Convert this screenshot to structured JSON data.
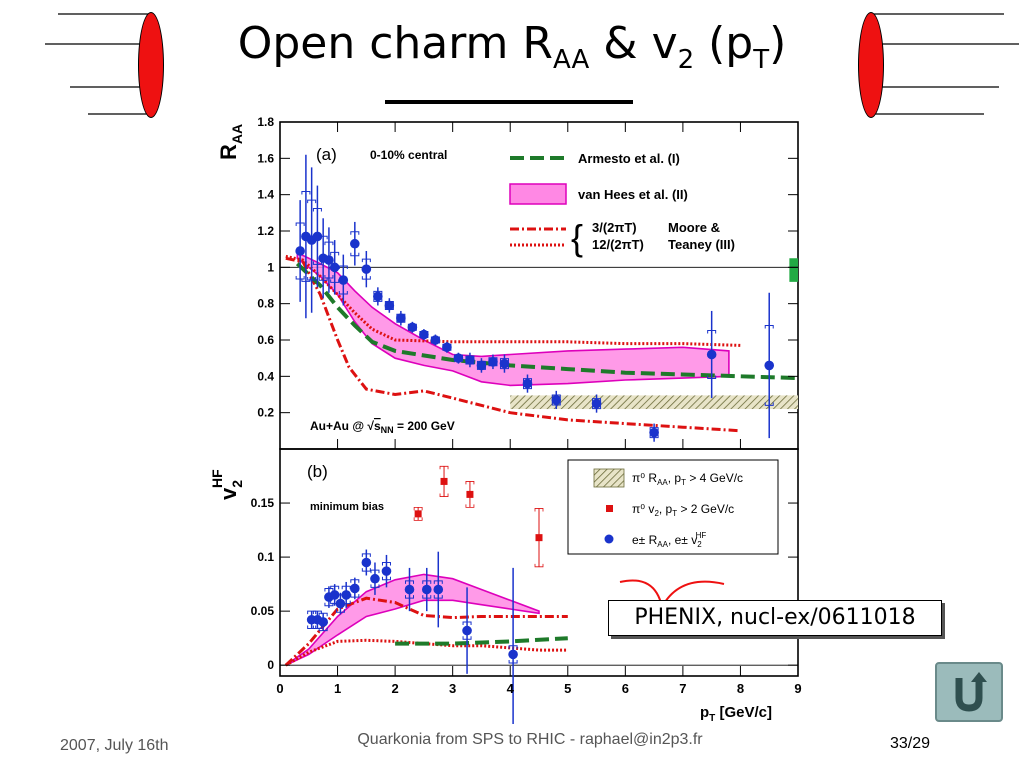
{
  "slide": {
    "title_main": "Open charm R",
    "title_sub1": "AA",
    "title_mid": " & v",
    "title_sub2": "2",
    "title_paren": " (p",
    "title_sub3": "T",
    "title_close": ")",
    "footer_date": "2007, July 16th",
    "footer_center": "Quarkonia from SPS to RHIC - raphael@in2p3.fr",
    "footer_page": "33/29",
    "citation": "PHENIX, nucl-ex/0611018",
    "return_icon": "return-arrow-icon"
  },
  "colors": {
    "blue": "#1a33cc",
    "red": "#dd1111",
    "green": "#1e7a2a",
    "magenta": "#ff66dd",
    "magenta_line": "#dd00bb",
    "deco_red": "#ee1111"
  },
  "chart_data": [
    {
      "type": "scatter",
      "panel_label": "(a)",
      "ylabel_main": "R",
      "ylabel_sub": "AA",
      "ylim": [
        0,
        1.8
      ],
      "xlim": [
        0,
        9
      ],
      "yticks": [
        "0.2",
        "0.4",
        "0.6",
        "0.8",
        "1",
        "1.2",
        "1.4",
        "1.6",
        "1.8"
      ],
      "annotation_centrality": "0-10% central",
      "annotation_system": "Au+Au @ ",
      "annotation_energy": "s",
      "annotation_energy_sub": "NN",
      "annotation_energy_tail": " = 200 GeV",
      "legend": [
        {
          "label": "Armesto et al. (I)",
          "style": "green-dashed"
        },
        {
          "label": "van Hees et al. (II)",
          "style": "magenta-band"
        },
        {
          "label": "3/(2πT)",
          "style": "red-dashdot"
        },
        {
          "label": "12/(2πT)",
          "style": "red-dotted"
        },
        {
          "label": "Moore &",
          "style": "text"
        },
        {
          "label": "Teaney (III)",
          "style": "text"
        }
      ],
      "series": [
        {
          "name": "e± RAA",
          "points": [
            [
              0.35,
              1.09
            ],
            [
              0.45,
              1.17
            ],
            [
              0.55,
              1.15
            ],
            [
              0.65,
              1.17
            ],
            [
              0.75,
              1.05
            ],
            [
              0.85,
              1.04
            ],
            [
              0.95,
              1.0
            ],
            [
              1.1,
              0.93
            ],
            [
              1.3,
              1.13
            ],
            [
              1.5,
              0.99
            ],
            [
              1.7,
              0.84
            ],
            [
              1.9,
              0.79
            ],
            [
              2.1,
              0.72
            ],
            [
              2.3,
              0.67
            ],
            [
              2.5,
              0.63
            ],
            [
              2.7,
              0.6
            ],
            [
              2.9,
              0.56
            ],
            [
              3.1,
              0.5
            ],
            [
              3.3,
              0.49
            ],
            [
              3.5,
              0.46
            ],
            [
              3.7,
              0.48
            ],
            [
              3.9,
              0.47
            ],
            [
              4.3,
              0.36
            ],
            [
              4.8,
              0.27
            ],
            [
              5.5,
              0.25
            ],
            [
              6.5,
              0.09
            ],
            [
              7.5,
              0.52
            ],
            [
              8.5,
              0.46
            ]
          ],
          "err": [
            [
              0.35,
              0.28
            ],
            [
              0.45,
              0.45
            ],
            [
              0.55,
              0.4
            ],
            [
              0.65,
              0.28
            ],
            [
              0.75,
              0.22
            ],
            [
              0.85,
              0.18
            ],
            [
              0.95,
              0.15
            ],
            [
              1.1,
              0.14
            ],
            [
              1.3,
              0.12
            ],
            [
              1.5,
              0.1
            ],
            [
              1.7,
              0.05
            ],
            [
              1.9,
              0.04
            ],
            [
              2.1,
              0.04
            ],
            [
              2.3,
              0.03
            ],
            [
              2.5,
              0.03
            ],
            [
              2.7,
              0.03
            ],
            [
              2.9,
              0.03
            ],
            [
              3.1,
              0.03
            ],
            [
              3.3,
              0.04
            ],
            [
              3.5,
              0.04
            ],
            [
              3.7,
              0.04
            ],
            [
              3.9,
              0.05
            ],
            [
              4.3,
              0.05
            ],
            [
              4.8,
              0.05
            ],
            [
              5.5,
              0.05
            ],
            [
              6.5,
              0.05
            ],
            [
              7.5,
              0.24
            ],
            [
              8.5,
              0.4
            ]
          ]
        }
      ],
      "curves": {
        "armesto": [
          [
            0.3,
            1.02
          ],
          [
            0.7,
            0.9
          ],
          [
            1.0,
            0.78
          ],
          [
            1.3,
            0.68
          ],
          [
            1.6,
            0.59
          ],
          [
            2.0,
            0.54
          ],
          [
            3.0,
            0.49
          ],
          [
            4.0,
            0.46
          ],
          [
            5.0,
            0.44
          ],
          [
            6.0,
            0.42
          ],
          [
            7.0,
            0.41
          ],
          [
            8.0,
            0.4
          ],
          [
            9.0,
            0.39
          ]
        ],
        "vanhees_upper": [
          [
            0.3,
            1.08
          ],
          [
            0.7,
            1.02
          ],
          [
            1.0,
            0.97
          ],
          [
            1.3,
            0.87
          ],
          [
            1.6,
            0.78
          ],
          [
            2.0,
            0.69
          ],
          [
            2.5,
            0.6
          ],
          [
            3.0,
            0.52
          ],
          [
            3.5,
            0.51
          ],
          [
            4.0,
            0.52
          ],
          [
            5.0,
            0.54
          ],
          [
            6.0,
            0.55
          ],
          [
            7.0,
            0.56
          ],
          [
            7.8,
            0.54
          ]
        ],
        "vanhees_lower": [
          [
            0.3,
            1.05
          ],
          [
            0.7,
            0.95
          ],
          [
            1.0,
            0.85
          ],
          [
            1.3,
            0.7
          ],
          [
            1.6,
            0.58
          ],
          [
            2.0,
            0.5
          ],
          [
            2.5,
            0.46
          ],
          [
            3.0,
            0.43
          ],
          [
            3.5,
            0.37
          ],
          [
            4.0,
            0.35
          ],
          [
            5.0,
            0.36
          ],
          [
            6.0,
            0.38
          ],
          [
            7.0,
            0.39
          ],
          [
            7.8,
            0.4
          ]
        ],
        "moore_3": [
          [
            0.1,
            1.05
          ],
          [
            0.4,
            1.03
          ],
          [
            0.7,
            0.85
          ],
          [
            1.0,
            0.6
          ],
          [
            1.2,
            0.45
          ],
          [
            1.5,
            0.33
          ],
          [
            2.0,
            0.3
          ],
          [
            2.5,
            0.32
          ],
          [
            3.0,
            0.28
          ],
          [
            4.0,
            0.2
          ],
          [
            5.0,
            0.16
          ],
          [
            6.0,
            0.14
          ],
          [
            7.0,
            0.12
          ],
          [
            8.0,
            0.1
          ]
        ],
        "moore_12": [
          [
            0.1,
            1.06
          ],
          [
            0.4,
            1.04
          ],
          [
            0.7,
            0.95
          ],
          [
            1.0,
            0.85
          ],
          [
            1.3,
            0.75
          ],
          [
            1.6,
            0.66
          ],
          [
            2.0,
            0.6
          ],
          [
            3.0,
            0.59
          ],
          [
            4.0,
            0.59
          ],
          [
            5.0,
            0.59
          ],
          [
            6.0,
            0.58
          ],
          [
            7.0,
            0.58
          ],
          [
            8.0,
            0.57
          ]
        ]
      },
      "ref_line_y": 1
    },
    {
      "type": "scatter",
      "panel_label": "(b)",
      "ylabel_main": "v",
      "ylabel_sub": "2",
      "ylabel_sup": "HF",
      "ylim": [
        -0.01,
        0.2
      ],
      "xlim": [
        0,
        9
      ],
      "yticks": [
        "0",
        "0.05",
        "0.1",
        "0.15"
      ],
      "xticks": [
        "0",
        "1",
        "2",
        "3",
        "4",
        "5",
        "6",
        "7",
        "8",
        "9"
      ],
      "xlabel_main": "p",
      "xlabel_sub": "T",
      "xlabel_unit": " [GeV/c]",
      "annotation": "minimum bias",
      "legend": [
        {
          "label": "π⁰ R",
          "sub": "AA",
          "tail": ", p",
          "tsub": "T",
          "tail2": " > 4 GeV/c",
          "style": "hatch-band"
        },
        {
          "label": "π⁰ v",
          "sub": "2",
          "tail": ", p",
          "tsub": "T",
          "tail2": " > 2 GeV/c",
          "style": "red-square"
        },
        {
          "label": "e± R",
          "sub": "AA",
          "tail": ", e± v",
          "tsub": "2",
          "tail2": "",
          "sup": "HF",
          "style": "blue-circle"
        }
      ],
      "series": [
        {
          "name": "e± v2HF",
          "points": [
            [
              0.55,
              0.042
            ],
            [
              0.65,
              0.042
            ],
            [
              0.75,
              0.04
            ],
            [
              0.85,
              0.063
            ],
            [
              0.95,
              0.065
            ],
            [
              1.05,
              0.057
            ],
            [
              1.15,
              0.065
            ],
            [
              1.3,
              0.071
            ],
            [
              1.5,
              0.095
            ],
            [
              1.65,
              0.08
            ],
            [
              1.85,
              0.087
            ],
            [
              2.25,
              0.07
            ],
            [
              2.55,
              0.07
            ],
            [
              2.75,
              0.07
            ],
            [
              3.25,
              0.032
            ],
            [
              4.05,
              0.01
            ]
          ],
          "err": [
            [
              0.55,
              0.008
            ],
            [
              0.65,
              0.008
            ],
            [
              0.75,
              0.008
            ],
            [
              0.85,
              0.01
            ],
            [
              0.95,
              0.01
            ],
            [
              1.05,
              0.01
            ],
            [
              1.15,
              0.012
            ],
            [
              1.3,
              0.01
            ],
            [
              1.5,
              0.012
            ],
            [
              1.65,
              0.015
            ],
            [
              1.85,
              0.015
            ],
            [
              2.25,
              0.02
            ],
            [
              2.55,
              0.02
            ],
            [
              2.75,
              0.035
            ],
            [
              3.25,
              0.04
            ],
            [
              4.05,
              0.08
            ]
          ]
        },
        {
          "name": "π⁰ v2",
          "points": [
            [
              2.4,
              0.14
            ],
            [
              2.85,
              0.17
            ],
            [
              3.3,
              0.158
            ],
            [
              4.5,
              0.118
            ]
          ],
          "err": [
            [
              2.4,
              0.006
            ],
            [
              2.85,
              0.014
            ],
            [
              3.3,
              0.012
            ],
            [
              4.5,
              0.027
            ]
          ]
        }
      ],
      "curves": {
        "vanhees_upper": [
          [
            0.1,
            0.0
          ],
          [
            0.5,
            0.015
          ],
          [
            1.0,
            0.045
          ],
          [
            1.5,
            0.068
          ],
          [
            2.0,
            0.079
          ],
          [
            2.5,
            0.084
          ],
          [
            3.0,
            0.08
          ],
          [
            3.5,
            0.07
          ],
          [
            4.0,
            0.06
          ],
          [
            4.5,
            0.05
          ]
        ],
        "vanhees_lower": [
          [
            0.1,
            0.0
          ],
          [
            0.5,
            0.01
          ],
          [
            1.0,
            0.028
          ],
          [
            1.5,
            0.045
          ],
          [
            2.0,
            0.052
          ],
          [
            2.5,
            0.06
          ],
          [
            3.0,
            0.06
          ],
          [
            3.5,
            0.056
          ],
          [
            4.0,
            0.052
          ],
          [
            4.5,
            0.048
          ]
        ],
        "moore_3": [
          [
            0.1,
            0.0
          ],
          [
            0.5,
            0.02
          ],
          [
            1.0,
            0.052
          ],
          [
            1.5,
            0.062
          ],
          [
            2.0,
            0.058
          ],
          [
            2.5,
            0.046
          ],
          [
            3.0,
            0.044
          ],
          [
            3.5,
            0.045
          ],
          [
            4.0,
            0.045
          ],
          [
            5.0,
            0.045
          ]
        ],
        "moore_12": [
          [
            0.1,
            0.0
          ],
          [
            0.5,
            0.012
          ],
          [
            1.0,
            0.022
          ],
          [
            1.5,
            0.023
          ],
          [
            2.0,
            0.022
          ],
          [
            2.5,
            0.02
          ],
          [
            3.0,
            0.018
          ],
          [
            3.5,
            0.018
          ],
          [
            4.0,
            0.016
          ],
          [
            4.5,
            0.014
          ],
          [
            5.0,
            0.014
          ]
        ],
        "armesto": [
          [
            2.0,
            0.02
          ],
          [
            3.0,
            0.02
          ],
          [
            4.0,
            0.022
          ],
          [
            5.0,
            0.025
          ]
        ]
      },
      "ref_line_y": 0
    }
  ]
}
